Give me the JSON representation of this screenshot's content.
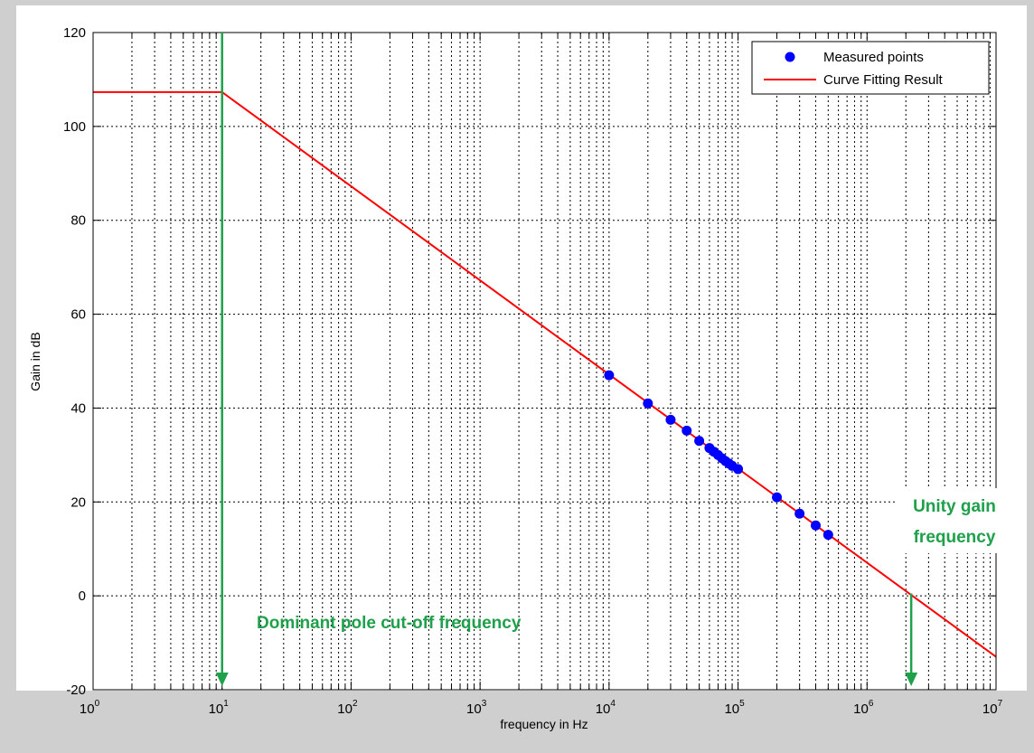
{
  "chart_data": {
    "type": "line",
    "title": "",
    "xlabel": "frequency in Hz",
    "ylabel": "Gain in dB",
    "xscale": "log",
    "xlim": [
      1,
      10000000
    ],
    "ylim": [
      -20,
      120
    ],
    "grid": true,
    "legend_position": "top-right",
    "x_ticks": [
      {
        "base": "10",
        "exp": "0",
        "value": 1
      },
      {
        "base": "10",
        "exp": "1",
        "value": 10
      },
      {
        "base": "10",
        "exp": "2",
        "value": 100
      },
      {
        "base": "10",
        "exp": "3",
        "value": 1000
      },
      {
        "base": "10",
        "exp": "4",
        "value": 10000
      },
      {
        "base": "10",
        "exp": "5",
        "value": 100000
      },
      {
        "base": "10",
        "exp": "6",
        "value": 1000000
      },
      {
        "base": "10",
        "exp": "7",
        "value": 10000000
      }
    ],
    "y_ticks": [
      "-20",
      "0",
      "20",
      "40",
      "60",
      "80",
      "100",
      "120"
    ],
    "series": [
      {
        "name": "Measured points",
        "kind": "scatter",
        "color": "#0000ff",
        "x": [
          10000,
          20000,
          30000,
          40000,
          50000,
          60000,
          65000,
          70000,
          75000,
          80000,
          85000,
          90000,
          100000,
          200000,
          300000,
          400000,
          500000
        ],
        "y": [
          47,
          41,
          37.5,
          35.2,
          33,
          31.5,
          30.7,
          30,
          29.3,
          28.7,
          28.2,
          27.7,
          27,
          21,
          17.5,
          15,
          13
        ]
      },
      {
        "name": "Curve Fitting Result",
        "kind": "line",
        "color": "#ff0000",
        "x": [
          1,
          10,
          10000000
        ],
        "y": [
          107.3,
          107.3,
          -13
        ]
      }
    ],
    "annotations": [
      {
        "text": "Dominant pole cut-off frequency",
        "color": "#1fa04a",
        "arrow_x": 10,
        "arrow_y_from": 120,
        "arrow_y_to": -20
      },
      {
        "text_lines": [
          "Unity gain",
          "frequency"
        ],
        "color": "#1fa04a",
        "arrow_x": 2200000,
        "arrow_y_from": 0.5,
        "arrow_y_to": -20
      }
    ]
  }
}
